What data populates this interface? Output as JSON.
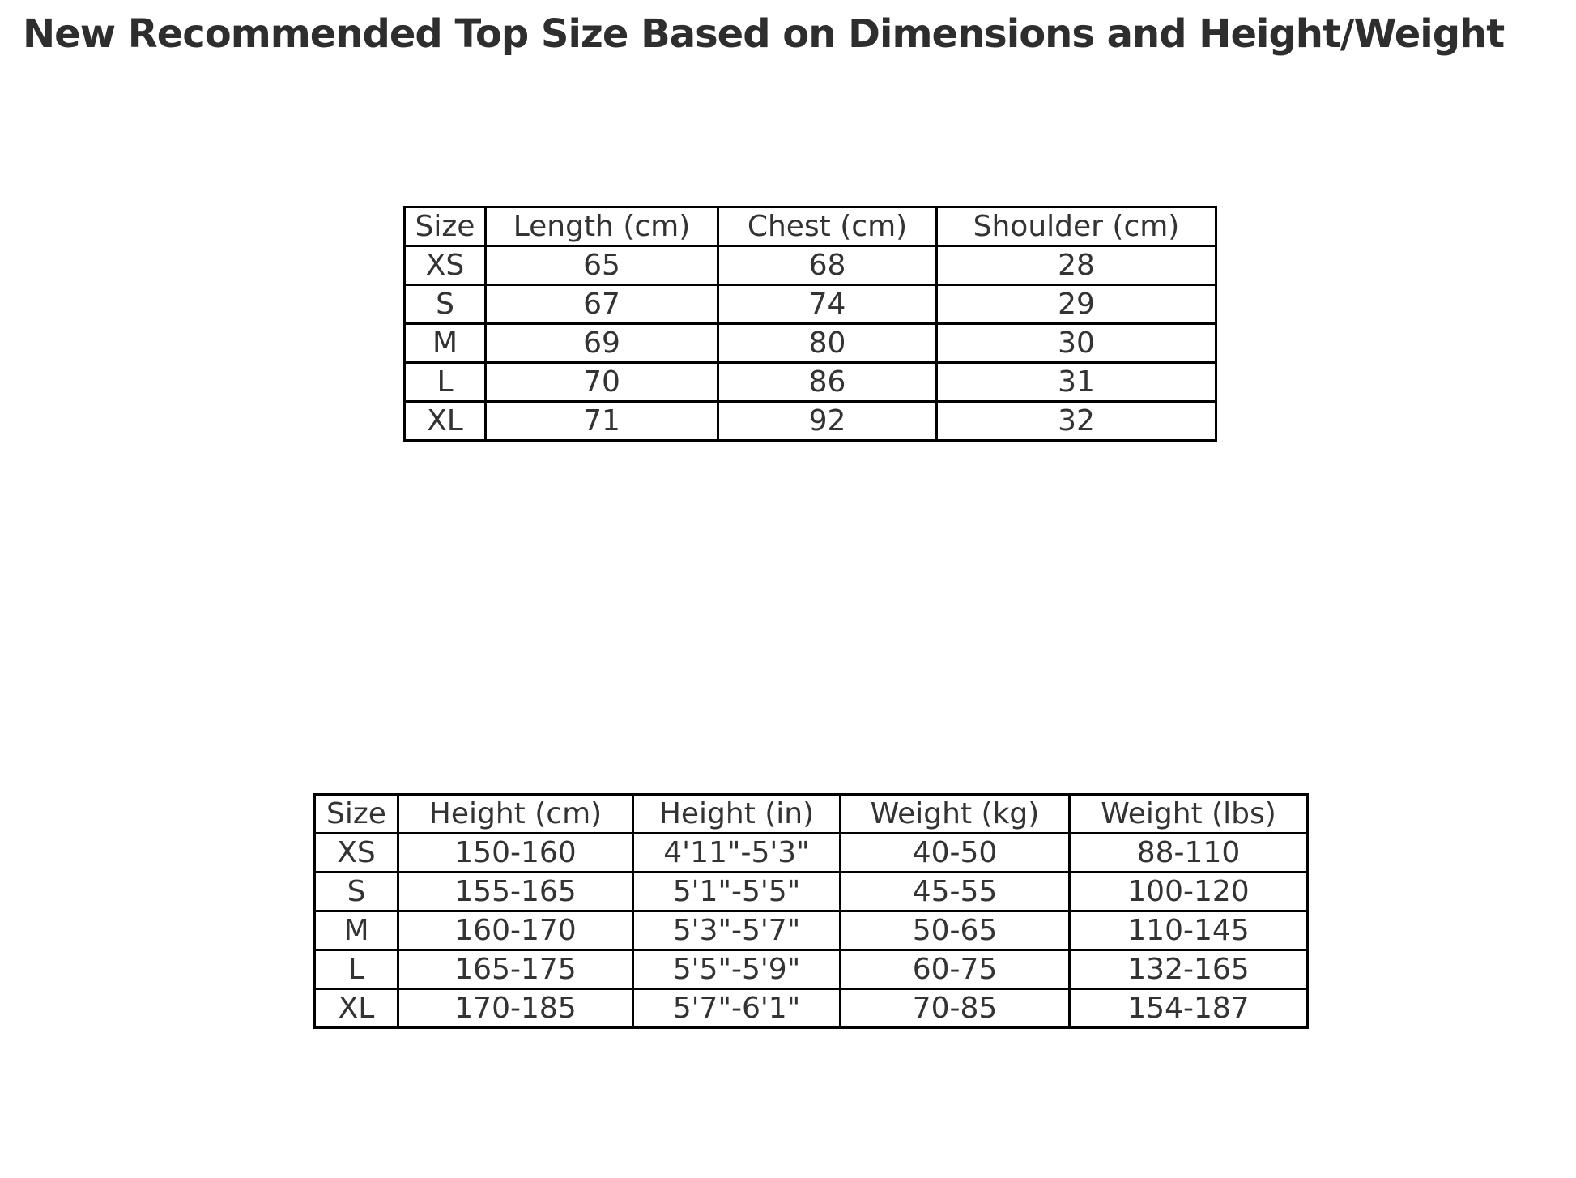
{
  "title": "New Recommended Top Size Based on Dimensions and Height/Weight",
  "chart_data": [
    {
      "type": "table",
      "name": "top_dimensions",
      "columns": [
        "Size",
        "Length (cm)",
        "Chest (cm)",
        "Shoulder (cm)"
      ],
      "rows": [
        [
          "XS",
          "65",
          "68",
          "28"
        ],
        [
          "S",
          "67",
          "74",
          "29"
        ],
        [
          "M",
          "69",
          "80",
          "30"
        ],
        [
          "L",
          "70",
          "86",
          "31"
        ],
        [
          "XL",
          "71",
          "92",
          "32"
        ]
      ]
    },
    {
      "type": "table",
      "name": "height_weight_recommendation",
      "columns": [
        "Size",
        "Height (cm)",
        "Height (in)",
        "Weight (kg)",
        "Weight (lbs)"
      ],
      "rows": [
        [
          "XS",
          "150-160",
          "4'11\"-5'3\"",
          "40-50",
          "88-110"
        ],
        [
          "S",
          "155-165",
          "5'1\"-5'5\"",
          "45-55",
          "100-120"
        ],
        [
          "M",
          "160-170",
          "5'3\"-5'7\"",
          "50-65",
          "110-145"
        ],
        [
          "L",
          "165-175",
          "5'5\"-5'9\"",
          "60-75",
          "132-165"
        ],
        [
          "XL",
          "170-185",
          "5'7\"-6'1\"",
          "70-85",
          "154-187"
        ]
      ]
    }
  ],
  "layout": {
    "background_color": "#ffffff",
    "border_color": "#000000",
    "text_color": "#333333",
    "title_color": "#2e2e2e"
  }
}
